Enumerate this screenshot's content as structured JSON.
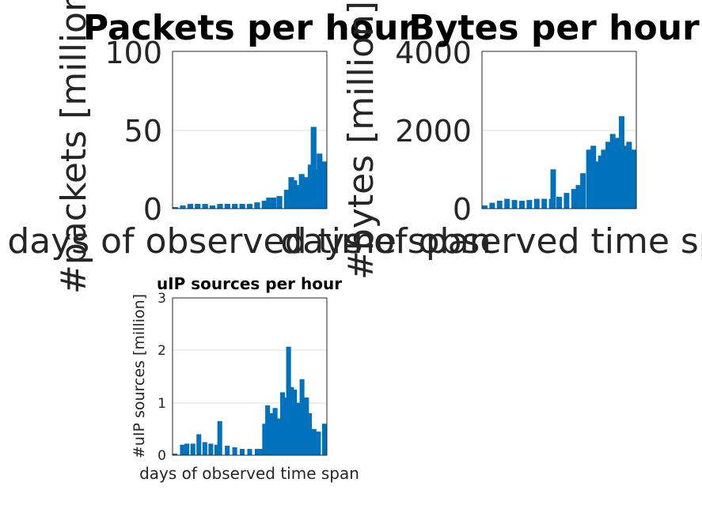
{
  "chart_data": [
    {
      "type": "bar",
      "title": "Packets per hour",
      "xlabel": "days of observed time span",
      "ylabel": "#packets [million]",
      "ylim": [
        0,
        100
      ],
      "yticks": [
        0,
        50,
        100
      ],
      "ytick_labels": [
        "0",
        "50",
        "100"
      ],
      "grid": true,
      "series_color": "#0072BD",
      "x": [
        0,
        0.05,
        0.1,
        0.15,
        0.2,
        0.25,
        0.3,
        0.35,
        0.4,
        0.45,
        0.5,
        0.55,
        0.6,
        0.63,
        0.66,
        0.7,
        0.75,
        0.78,
        0.8,
        0.82,
        0.85,
        0.88,
        0.91,
        0.93,
        0.95,
        0.97,
        1.0
      ],
      "values": [
        1,
        2,
        3,
        3,
        3,
        2,
        3,
        3,
        3,
        3,
        3,
        4,
        5,
        7,
        7,
        8,
        12,
        20,
        18,
        15,
        22,
        20,
        28,
        52,
        25,
        35,
        30
      ]
    },
    {
      "type": "bar",
      "title": "Bytes per hour",
      "xlabel": "days of observed time span",
      "ylabel": "#bytes [million]",
      "ylim": [
        0,
        4000
      ],
      "yticks": [
        0,
        2000,
        4000
      ],
      "ytick_labels": [
        "0",
        "2000",
        "4000"
      ],
      "grid": true,
      "series_color": "#0072BD",
      "x": [
        0,
        0.05,
        0.1,
        0.15,
        0.2,
        0.25,
        0.3,
        0.35,
        0.4,
        0.45,
        0.46,
        0.5,
        0.55,
        0.6,
        0.63,
        0.66,
        0.7,
        0.73,
        0.75,
        0.78,
        0.8,
        0.83,
        0.86,
        0.89,
        0.92,
        0.95,
        0.97,
        1.0
      ],
      "values": [
        80,
        150,
        200,
        250,
        220,
        200,
        220,
        250,
        250,
        250,
        1000,
        300,
        400,
        500,
        600,
        900,
        1500,
        1600,
        1200,
        1350,
        1500,
        1700,
        1900,
        1800,
        2350,
        1600,
        1700,
        1500
      ]
    },
    {
      "type": "bar",
      "title": "uIP sources per hour",
      "xlabel": "days of observed time span",
      "ylabel": "#uIP sources [million]",
      "ylim": [
        0,
        3
      ],
      "yticks": [
        0,
        1,
        2,
        3
      ],
      "ytick_labels": [
        "0",
        "1",
        "2",
        "3"
      ],
      "grid": true,
      "series_color": "#0072BD",
      "x": [
        0,
        0.05,
        0.08,
        0.12,
        0.16,
        0.2,
        0.24,
        0.28,
        0.3,
        0.35,
        0.4,
        0.45,
        0.5,
        0.55,
        0.58,
        0.6,
        0.62,
        0.64,
        0.67,
        0.7,
        0.72,
        0.74,
        0.76,
        0.78,
        0.8,
        0.82,
        0.85,
        0.88,
        0.9,
        0.93,
        0.96,
        1.0
      ],
      "values": [
        0.03,
        0.2,
        0.22,
        0.22,
        0.4,
        0.25,
        0.22,
        0.2,
        0.65,
        0.18,
        0.15,
        0.12,
        0.12,
        0.12,
        0.12,
        0.6,
        0.95,
        0.8,
        0.9,
        0.7,
        1.2,
        1.1,
        2.07,
        1.3,
        1.25,
        1.0,
        1.45,
        1.1,
        0.8,
        0.5,
        0.45,
        0.6
      ]
    }
  ]
}
